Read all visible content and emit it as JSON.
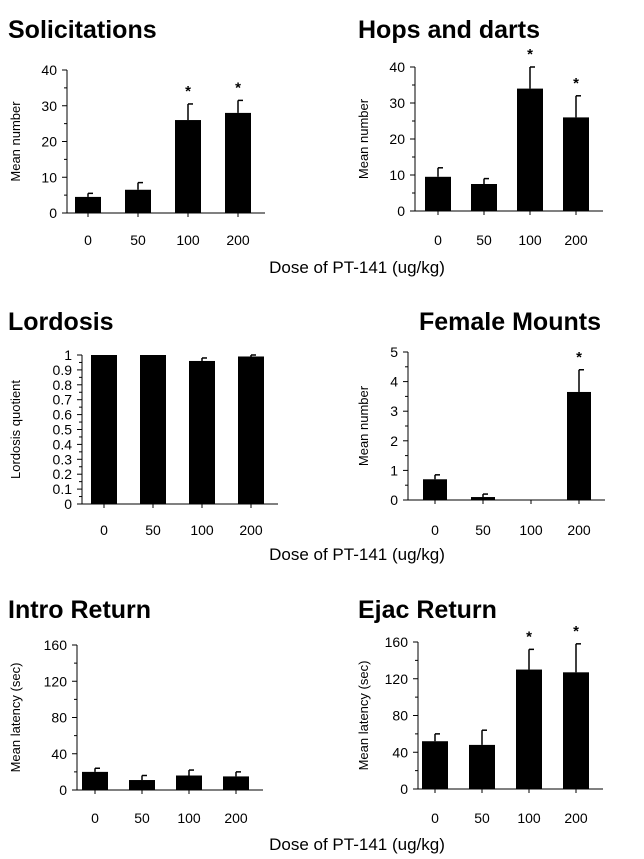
{
  "xlabels": [
    "Dose of PT-141 (ug/kg)",
    "Dose of PT-141 (ug/kg)",
    "Dose of PT-141 (ug/kg)"
  ],
  "chart_data": [
    {
      "type": "bar",
      "title": "Solicitations",
      "ylabel": "Mean number",
      "categories": [
        "0",
        "50",
        "100",
        "200"
      ],
      "values": [
        4.5,
        6.5,
        26,
        28
      ],
      "errors": [
        1,
        2,
        4.5,
        3.5
      ],
      "ylim": [
        0,
        40
      ],
      "yticks": [
        "0",
        "10",
        "20",
        "30",
        "40"
      ],
      "significant": [
        "",
        "",
        "*",
        "*"
      ],
      "grid": false
    },
    {
      "type": "bar",
      "title": "Hops and darts",
      "ylabel": "Mean number",
      "categories": [
        "0",
        "50",
        "100",
        "200"
      ],
      "values": [
        9.5,
        7.5,
        34,
        26
      ],
      "errors": [
        2.5,
        1.5,
        6,
        6
      ],
      "ylim": [
        0,
        40
      ],
      "yticks": [
        "0",
        "10",
        "20",
        "30",
        "40"
      ],
      "significant": [
        "",
        "",
        "*",
        "*"
      ],
      "grid": false
    },
    {
      "type": "bar",
      "title": "Lordosis",
      "ylabel": "Lordosis quotient",
      "categories": [
        "0",
        "50",
        "100",
        "200"
      ],
      "values": [
        1,
        1,
        0.96,
        0.99
      ],
      "errors": [
        0,
        0,
        0.02,
        0.01
      ],
      "ylim": [
        0,
        1
      ],
      "yticks": [
        "0",
        "0.1",
        "0.2",
        "0.3",
        "0.4",
        "0.5",
        "0.6",
        "0.7",
        "0.8",
        "0.9",
        "1"
      ],
      "significant": [
        "",
        "",
        "",
        ""
      ],
      "grid": false
    },
    {
      "type": "bar",
      "title": "Female Mounts",
      "ylabel": "Mean number",
      "categories": [
        "0",
        "50",
        "100",
        "200"
      ],
      "values": [
        0.7,
        0.1,
        0,
        3.65
      ],
      "errors": [
        0.15,
        0.1,
        0,
        0.75
      ],
      "ylim": [
        0,
        5
      ],
      "yticks": [
        "0",
        "1",
        "2",
        "3",
        "4",
        "5"
      ],
      "significant": [
        "",
        "",
        "",
        "*"
      ],
      "grid": false
    },
    {
      "type": "bar",
      "title": "Intro Return",
      "ylabel": "Mean latency (sec)",
      "categories": [
        "0",
        "50",
        "100",
        "200"
      ],
      "values": [
        20,
        11,
        16,
        15
      ],
      "errors": [
        4,
        5,
        6,
        5
      ],
      "ylim": [
        0,
        160
      ],
      "yticks": [
        "0",
        "40",
        "80",
        "120",
        "160"
      ],
      "significant": [
        "",
        "",
        "",
        ""
      ],
      "grid": false
    },
    {
      "type": "bar",
      "title": "Ejac Return",
      "ylabel": "Mean latency (sec)",
      "categories": [
        "0",
        "50",
        "100",
        "200"
      ],
      "values": [
        52,
        48,
        130,
        127
      ],
      "errors": [
        8,
        16,
        22,
        31
      ],
      "ylim": [
        0,
        160
      ],
      "yticks": [
        "0",
        "40",
        "80",
        "120",
        "160"
      ],
      "significant": [
        "",
        "",
        "*",
        "*"
      ],
      "grid": false
    }
  ]
}
